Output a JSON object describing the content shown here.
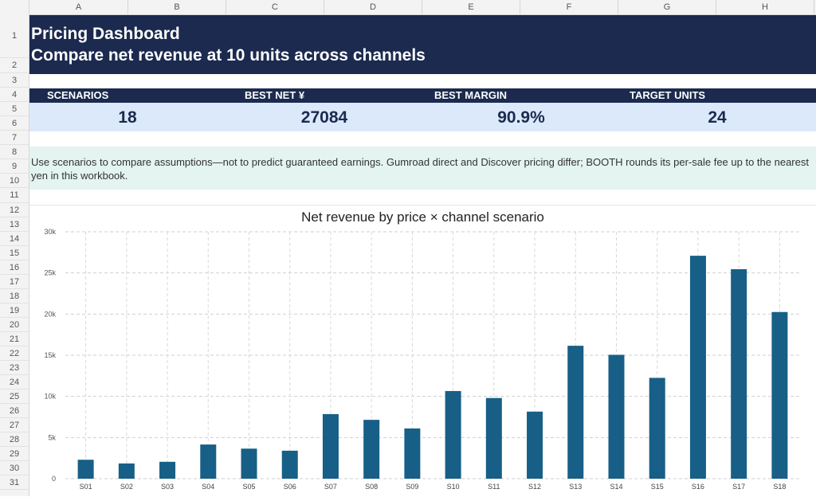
{
  "columns": [
    "A",
    "B",
    "C",
    "D",
    "E",
    "F",
    "G",
    "H"
  ],
  "rows": [
    "1",
    "2",
    "3",
    "4",
    "5",
    "6",
    "7",
    "8",
    "9",
    "10",
    "11",
    "12",
    "13",
    "14",
    "15",
    "16",
    "17",
    "18",
    "19",
    "20",
    "21",
    "22",
    "23",
    "24",
    "25",
    "26",
    "27",
    "28",
    "29",
    "30",
    "31"
  ],
  "title": {
    "line1": "Pricing Dashboard",
    "line2": "Compare net revenue at 10 units across channels"
  },
  "kpis": [
    {
      "label": "SCENARIOS",
      "value": "18"
    },
    {
      "label": "BEST NET ¥",
      "value": "27084"
    },
    {
      "label": "BEST MARGIN",
      "value": "90.9%"
    },
    {
      "label": "TARGET UNITS",
      "value": "24"
    }
  ],
  "note": "Use scenarios to compare assumptions—not to predict guaranteed earnings. Gumroad direct and Discover pricing differ; BOOTH rounds its per-sale fee up to the nearest yen in this workbook.",
  "colors": {
    "accent": "#1b2a4e",
    "bar": "#175f86",
    "kpi_bg": "#dce9fb",
    "note_bg": "#e3f4f1"
  },
  "chart_data": {
    "type": "bar",
    "title": "Net revenue by price × channel scenario",
    "categories": [
      "S01",
      "S02",
      "S03",
      "S04",
      "S05",
      "S06",
      "S07",
      "S08",
      "S09",
      "S10",
      "S11",
      "S12",
      "S13",
      "S14",
      "S15",
      "S16",
      "S17",
      "S18"
    ],
    "values": [
      2300,
      1850,
      2050,
      4150,
      3650,
      3400,
      7850,
      7150,
      6100,
      10650,
      9800,
      8150,
      16150,
      15050,
      12250,
      27084,
      25450,
      20250
    ],
    "ylim": [
      0,
      30000
    ],
    "yticks": [
      "0",
      "5k",
      "10k",
      "15k",
      "20k",
      "25k",
      "30k"
    ],
    "xlabel": "",
    "ylabel": "",
    "grid": true
  }
}
